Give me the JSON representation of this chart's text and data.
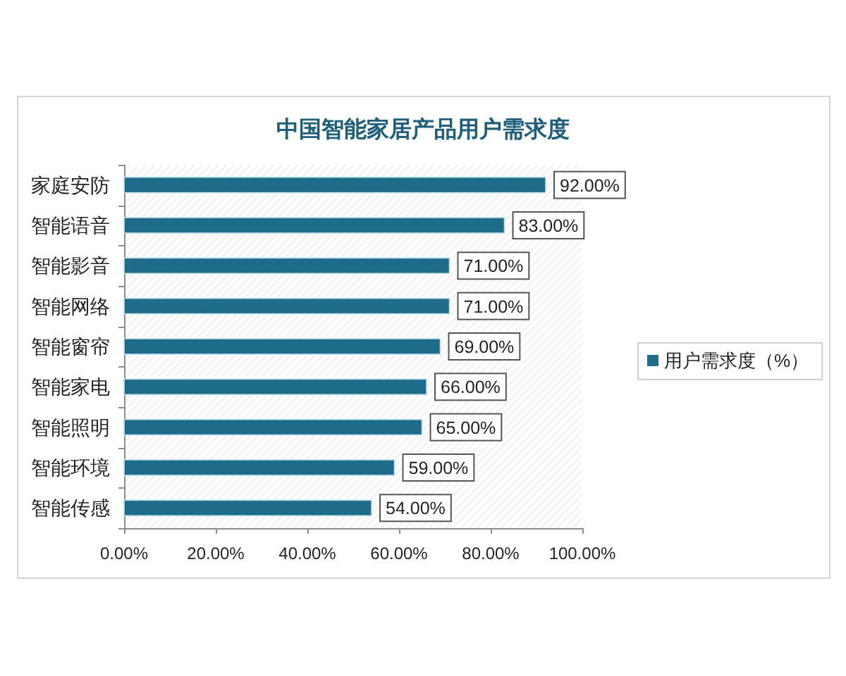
{
  "chart_data": {
    "type": "bar",
    "orientation": "horizontal",
    "title": "中国智能家居产品用户需求度",
    "categories": [
      "家庭安防",
      "智能语音",
      "智能影音",
      "智能网络",
      "智能窗帘",
      "智能家电",
      "智能照明",
      "智能环境",
      "智能传感"
    ],
    "series": [
      {
        "name": "用户需求度（%）",
        "color": "#1f6b8a",
        "values": [
          92,
          83,
          71,
          71,
          69,
          66,
          65,
          59,
          54
        ],
        "value_labels": [
          "92.00%",
          "83.00%",
          "71.00%",
          "71.00%",
          "69.00%",
          "66.00%",
          "65.00%",
          "59.00%",
          "54.00%"
        ]
      }
    ],
    "xlim": [
      0,
      100
    ],
    "xticks": [
      {
        "value": 0,
        "label": "0.00%"
      },
      {
        "value": 20,
        "label": "20.00%"
      },
      {
        "value": 40,
        "label": "40.00%"
      },
      {
        "value": 60,
        "label": "60.00%"
      },
      {
        "value": 80,
        "label": "80.00%"
      },
      {
        "value": 100,
        "label": "100.00%"
      }
    ],
    "grid": false,
    "legend": "right"
  }
}
